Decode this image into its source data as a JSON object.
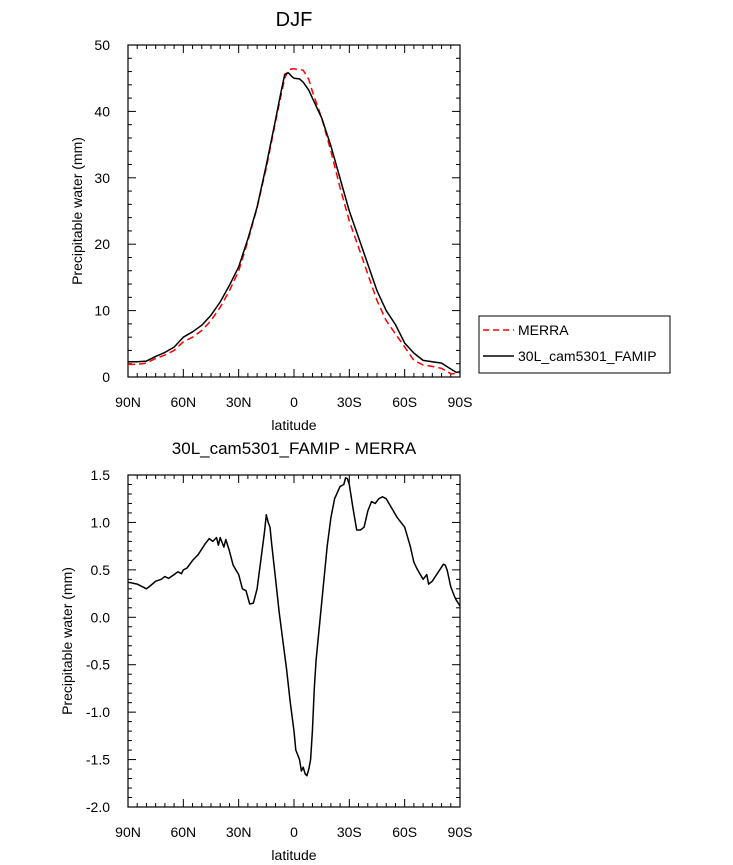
{
  "chart_data": [
    {
      "type": "line",
      "title": "DJF",
      "xlabel": "latitude",
      "ylabel": "Precipitable water (mm)",
      "xlim": [
        -90,
        90
      ],
      "ylim": [
        0,
        50
      ],
      "x_tick_values": [
        -90,
        -60,
        -30,
        0,
        30,
        60,
        90
      ],
      "x_tick_labels": [
        "90N",
        "60N",
        "30N",
        "0",
        "30S",
        "60S",
        "90S"
      ],
      "y_tick_values": [
        0,
        10,
        20,
        30,
        40,
        50
      ],
      "y_tick_labels": [
        "0",
        "10",
        "20",
        "30",
        "40",
        "50"
      ],
      "legend_position": "right",
      "grid": false,
      "series": [
        {
          "name": "MERRA",
          "color": "#ff0000",
          "dash": "dashed",
          "x": [
            -90,
            -85,
            -80,
            -75,
            -70,
            -65,
            -60,
            -55,
            -50,
            -45,
            -40,
            -35,
            -30,
            -25,
            -20,
            -15,
            -10,
            -7,
            -5,
            -3,
            -1,
            0,
            3,
            5,
            8,
            10,
            15,
            20,
            25,
            30,
            35,
            40,
            45,
            50,
            55,
            60,
            65,
            70,
            75,
            80,
            85,
            88,
            90
          ],
          "y": [
            1.9,
            1.9,
            2.1,
            2.8,
            3.3,
            4.0,
            5.3,
            6.0,
            7.0,
            8.5,
            10.5,
            13.0,
            16.0,
            20.5,
            25.5,
            31.5,
            38.5,
            42.5,
            45.0,
            46.3,
            46.4,
            46.4,
            46.3,
            46.2,
            44.8,
            43.0,
            39.0,
            34.0,
            28.5,
            23.5,
            19.5,
            15.5,
            11.5,
            8.5,
            6.5,
            4.5,
            2.5,
            1.8,
            1.6,
            1.3,
            0.5,
            0.5,
            0.6
          ]
        },
        {
          "name": "30L_cam5301_FAMIP",
          "color": "#000000",
          "dash": "solid",
          "x": [
            -90,
            -85,
            -80,
            -75,
            -70,
            -65,
            -60,
            -55,
            -50,
            -45,
            -40,
            -35,
            -30,
            -25,
            -20,
            -15,
            -10,
            -7,
            -5,
            -3,
            -1,
            0,
            3,
            5,
            8,
            10,
            15,
            20,
            25,
            30,
            35,
            40,
            45,
            50,
            55,
            60,
            65,
            70,
            75,
            80,
            85,
            88,
            90
          ],
          "y": [
            2.3,
            2.3,
            2.4,
            3.1,
            3.7,
            4.5,
            6.0,
            6.8,
            7.8,
            9.3,
            11.3,
            13.8,
            16.6,
            20.8,
            25.6,
            31.9,
            38.8,
            43.0,
            45.6,
            45.8,
            45.2,
            45.0,
            44.9,
            44.4,
            43.2,
            42.0,
            39.0,
            34.8,
            29.9,
            25.0,
            21.0,
            17.0,
            13.0,
            10.0,
            7.9,
            5.1,
            3.6,
            2.5,
            2.3,
            2.1,
            1.2,
            0.7,
            0.8
          ]
        }
      ]
    },
    {
      "type": "line",
      "title": "30L_cam5301_FAMIP - MERRA",
      "xlabel": "latitude",
      "ylabel": "Precipitable water (mm)",
      "xlim": [
        -90,
        90
      ],
      "ylim": [
        -2.0,
        1.5
      ],
      "x_tick_values": [
        -90,
        -60,
        -30,
        0,
        30,
        60,
        90
      ],
      "x_tick_labels": [
        "90N",
        "60N",
        "30N",
        "0",
        "30S",
        "60S",
        "90S"
      ],
      "y_tick_values": [
        -2.0,
        -1.5,
        -1.0,
        -0.5,
        0.0,
        0.5,
        1.0,
        1.5
      ],
      "y_tick_labels": [
        "-2.0",
        "-1.5",
        "-1.0",
        "-0.5",
        "0.0",
        "0.5",
        "1.0",
        "1.5"
      ],
      "grid": false,
      "series": [
        {
          "color": "#000000",
          "x": [
            -90,
            -85,
            -80,
            -78,
            -75,
            -72,
            -70,
            -68,
            -65,
            -63,
            -61,
            -60,
            -58,
            -55,
            -52,
            -50,
            -48,
            -46,
            -44,
            -42,
            -41,
            -40,
            -38,
            -37,
            -35,
            -33,
            -30,
            -28,
            -26,
            -24,
            -22,
            -20,
            -18,
            -16,
            -15,
            -14,
            -13,
            -12,
            -10,
            -8,
            -6,
            -4,
            -2,
            0,
            1,
            2,
            3,
            4,
            5,
            6,
            7,
            8,
            9,
            10,
            11,
            12,
            14,
            16,
            18,
            20,
            22,
            25,
            27,
            28,
            29,
            30,
            32,
            34,
            36,
            38,
            40,
            42,
            44,
            46,
            48,
            50,
            53,
            56,
            60,
            63,
            65,
            67,
            70,
            72,
            73,
            75,
            77,
            79,
            81,
            82,
            83,
            85,
            87,
            88,
            90
          ],
          "y": [
            0.37,
            0.35,
            0.3,
            0.33,
            0.38,
            0.4,
            0.43,
            0.41,
            0.45,
            0.48,
            0.46,
            0.5,
            0.52,
            0.6,
            0.66,
            0.72,
            0.78,
            0.83,
            0.8,
            0.84,
            0.76,
            0.84,
            0.74,
            0.82,
            0.7,
            0.55,
            0.45,
            0.3,
            0.28,
            0.14,
            0.15,
            0.3,
            0.6,
            0.9,
            1.08,
            1.0,
            0.95,
            0.75,
            0.4,
            0.05,
            -0.25,
            -0.55,
            -0.9,
            -1.2,
            -1.4,
            -1.45,
            -1.5,
            -1.62,
            -1.58,
            -1.65,
            -1.67,
            -1.6,
            -1.5,
            -1.2,
            -0.75,
            -0.45,
            -0.05,
            0.35,
            0.75,
            1.05,
            1.25,
            1.38,
            1.4,
            1.47,
            1.46,
            1.4,
            1.15,
            0.92,
            0.92,
            0.95,
            1.12,
            1.22,
            1.2,
            1.25,
            1.27,
            1.25,
            1.15,
            1.05,
            0.95,
            0.75,
            0.58,
            0.5,
            0.4,
            0.45,
            0.35,
            0.38,
            0.44,
            0.5,
            0.56,
            0.55,
            0.5,
            0.32,
            0.22,
            0.18,
            0.12
          ]
        }
      ]
    }
  ]
}
